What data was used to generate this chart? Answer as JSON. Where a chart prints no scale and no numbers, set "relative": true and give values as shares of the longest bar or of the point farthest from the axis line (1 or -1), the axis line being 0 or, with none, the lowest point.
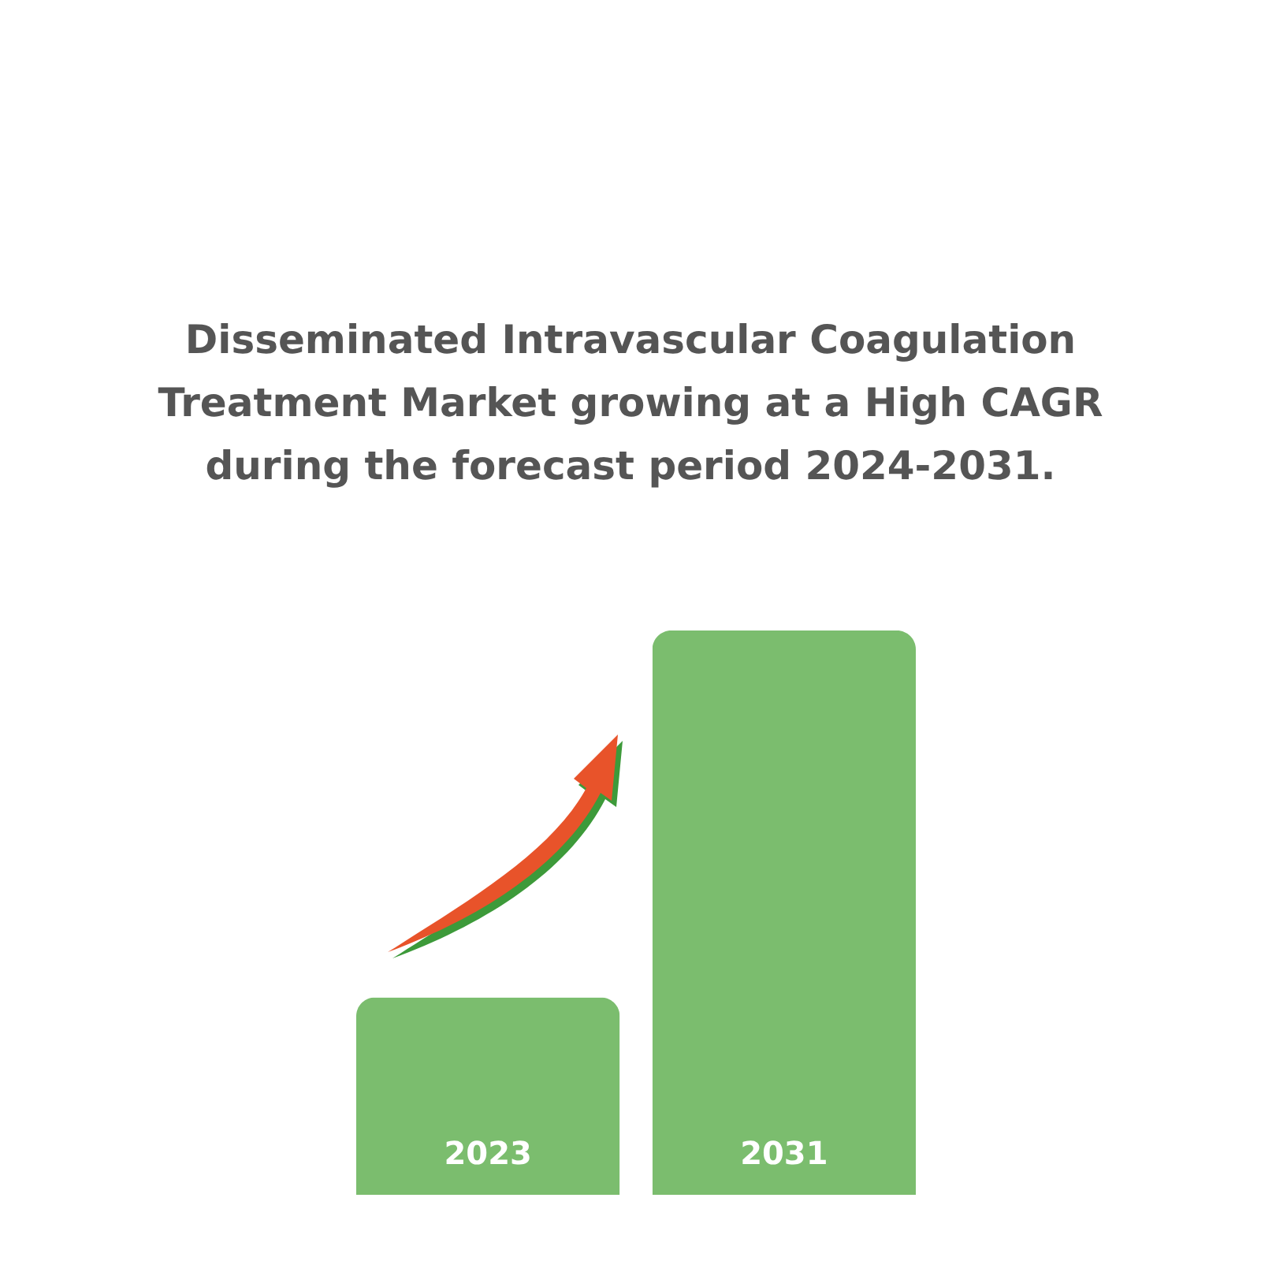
{
  "chart_data": {
    "type": "bar",
    "title": "Disseminated Intravascular Coagulation Treatment Market growing at a High CAGR during the forecast period 2024-2031.",
    "categories": [
      "2023",
      "2031"
    ],
    "values": [
      0.35,
      1
    ],
    "color": "#7bbd6e",
    "relative": true
  }
}
